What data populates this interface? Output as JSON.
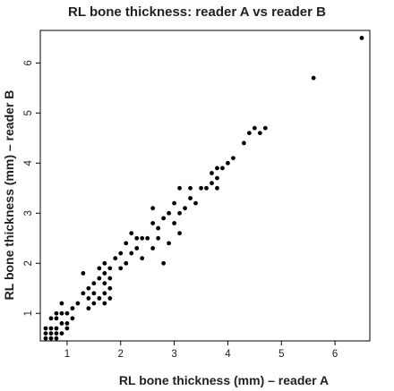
{
  "chart_data": {
    "type": "scatter",
    "title": "RL bone thickness: reader A vs reader B",
    "xlabel": "RL bone thickness (mm) – reader A",
    "ylabel": "RL bone thickness (mm) – reader B",
    "xlim": [
      0.5,
      6.65
    ],
    "ylim": [
      0.45,
      6.65
    ],
    "xticks": [
      1,
      2,
      3,
      4,
      5,
      6
    ],
    "yticks": [
      1,
      2,
      3,
      4,
      5,
      6
    ],
    "grid": false,
    "legend": "none",
    "marker_color": "#000000",
    "points": [
      [
        0.6,
        0.5
      ],
      [
        0.6,
        0.6
      ],
      [
        0.6,
        0.7
      ],
      [
        0.7,
        0.5
      ],
      [
        0.7,
        0.6
      ],
      [
        0.7,
        0.7
      ],
      [
        0.7,
        0.9
      ],
      [
        0.8,
        0.5
      ],
      [
        0.8,
        0.6
      ],
      [
        0.8,
        0.7
      ],
      [
        0.8,
        0.9
      ],
      [
        0.8,
        1.0
      ],
      [
        0.9,
        0.6
      ],
      [
        0.9,
        0.8
      ],
      [
        0.9,
        1.0
      ],
      [
        0.9,
        1.2
      ],
      [
        1.0,
        0.7
      ],
      [
        1.0,
        0.8
      ],
      [
        1.0,
        1.0
      ],
      [
        1.1,
        0.9
      ],
      [
        1.1,
        1.1
      ],
      [
        1.2,
        1.2
      ],
      [
        1.3,
        1.4
      ],
      [
        1.3,
        1.8
      ],
      [
        1.4,
        1.1
      ],
      [
        1.4,
        1.3
      ],
      [
        1.4,
        1.5
      ],
      [
        1.5,
        1.2
      ],
      [
        1.5,
        1.4
      ],
      [
        1.5,
        1.6
      ],
      [
        1.6,
        1.3
      ],
      [
        1.6,
        1.7
      ],
      [
        1.6,
        1.9
      ],
      [
        1.7,
        1.2
      ],
      [
        1.7,
        1.4
      ],
      [
        1.7,
        1.6
      ],
      [
        1.7,
        1.8
      ],
      [
        1.7,
        2.0
      ],
      [
        1.8,
        1.3
      ],
      [
        1.8,
        1.5
      ],
      [
        1.8,
        1.7
      ],
      [
        1.8,
        1.9
      ],
      [
        1.9,
        2.1
      ],
      [
        2.0,
        1.9
      ],
      [
        2.0,
        2.2
      ],
      [
        2.1,
        2.0
      ],
      [
        2.1,
        2.4
      ],
      [
        2.2,
        2.2
      ],
      [
        2.2,
        2.6
      ],
      [
        2.3,
        2.3
      ],
      [
        2.3,
        2.5
      ],
      [
        2.4,
        2.5
      ],
      [
        2.4,
        2.1
      ],
      [
        2.5,
        2.5
      ],
      [
        2.6,
        2.3
      ],
      [
        2.6,
        2.8
      ],
      [
        2.6,
        3.1
      ],
      [
        2.7,
        2.7
      ],
      [
        2.7,
        2.5
      ],
      [
        2.8,
        2.9
      ],
      [
        2.8,
        2.0
      ],
      [
        2.9,
        2.4
      ],
      [
        2.9,
        3.0
      ],
      [
        3.0,
        2.8
      ],
      [
        3.0,
        3.2
      ],
      [
        3.1,
        3.0
      ],
      [
        3.1,
        2.6
      ],
      [
        3.1,
        3.5
      ],
      [
        3.2,
        3.1
      ],
      [
        3.3,
        3.3
      ],
      [
        3.3,
        3.5
      ],
      [
        3.4,
        3.2
      ],
      [
        3.5,
        3.5
      ],
      [
        3.6,
        3.5
      ],
      [
        3.7,
        3.6
      ],
      [
        3.7,
        3.8
      ],
      [
        3.8,
        3.7
      ],
      [
        3.8,
        3.9
      ],
      [
        3.8,
        3.5
      ],
      [
        3.9,
        3.9
      ],
      [
        4.0,
        4.0
      ],
      [
        4.1,
        4.1
      ],
      [
        4.3,
        4.4
      ],
      [
        4.4,
        4.6
      ],
      [
        4.5,
        4.7
      ],
      [
        4.6,
        4.6
      ],
      [
        4.7,
        4.7
      ],
      [
        5.6,
        5.7
      ],
      [
        6.5,
        6.5
      ]
    ]
  }
}
